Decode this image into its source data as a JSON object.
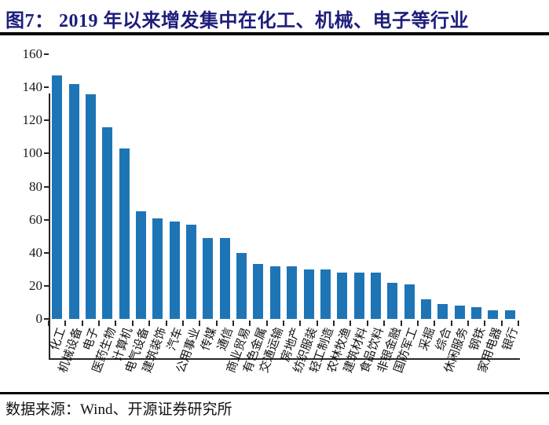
{
  "figure": {
    "title": "图7： 2019 年以来增发集中在化工、机械、电子等行业",
    "source": "数据来源：Wind、开源证券研究所"
  },
  "colors": {
    "title_text": "#1d1d7c",
    "bar": "#1E75B6",
    "axis": "#262626",
    "rule": "#000000"
  },
  "chart_data": {
    "type": "bar",
    "title": "2019 年以来增发集中在化工、机械、电子等行业",
    "categories": [
      "化工",
      "机械设备",
      "电子",
      "医药生物",
      "计算机",
      "电气设备",
      "建筑装饰",
      "汽车",
      "公用事业",
      "传媒",
      "通信",
      "商业贸易",
      "有色金属",
      "交通运输",
      "房地产",
      "纺织服装",
      "轻工制造",
      "农林牧渔",
      "建筑材料",
      "食品饮料",
      "非银金融",
      "国防军工",
      "采掘",
      "综合",
      "休闲服务",
      "钢铁",
      "家用电器",
      "银行"
    ],
    "values": [
      147,
      142,
      136,
      116,
      103,
      65,
      61,
      59,
      57,
      49,
      49,
      40,
      33,
      32,
      32,
      30,
      30,
      28,
      28,
      28,
      22,
      21,
      12,
      9,
      8,
      7,
      5,
      5
    ],
    "xlabel": "",
    "ylabel": "",
    "ylim": [
      0,
      160
    ],
    "yticks": [
      0,
      20,
      40,
      60,
      80,
      100,
      120,
      140,
      160
    ],
    "grid": false,
    "legend_position": "none",
    "bar_color": "#1E75B6"
  }
}
